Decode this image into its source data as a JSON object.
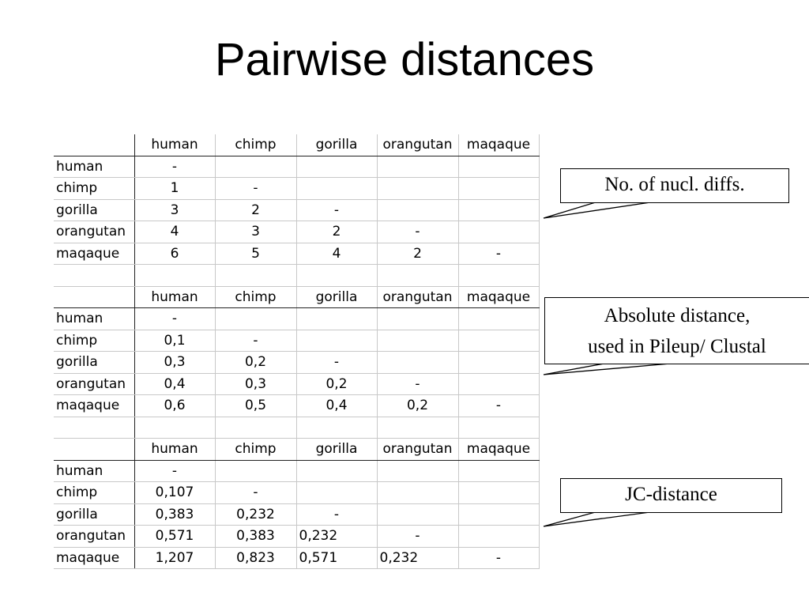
{
  "slide": {
    "title": "Pairwise distances"
  },
  "tables": [
    {
      "columns": [
        "human",
        "chimp",
        "gorilla",
        "orangutan",
        "maqaque"
      ],
      "rows": [
        {
          "label": "human",
          "cells": [
            "-",
            "",
            "",
            "",
            ""
          ]
        },
        {
          "label": "chimp",
          "cells": [
            "1",
            "-",
            "",
            "",
            ""
          ]
        },
        {
          "label": "gorilla",
          "cells": [
            "3",
            "2",
            "-",
            "",
            ""
          ]
        },
        {
          "label": "orangutan",
          "cells": [
            "4",
            "3",
            "2",
            "-",
            ""
          ]
        },
        {
          "label": "maqaque",
          "cells": [
            "6",
            "5",
            "4",
            "2",
            "-"
          ]
        }
      ]
    },
    {
      "columns": [
        "human",
        "chimp",
        "gorilla",
        "orangutan",
        "maqaque"
      ],
      "rows": [
        {
          "label": "human",
          "cells": [
            "-",
            "",
            "",
            "",
            ""
          ]
        },
        {
          "label": "chimp",
          "cells": [
            "0,1",
            "-",
            "",
            "",
            ""
          ]
        },
        {
          "label": "gorilla",
          "cells": [
            "0,3",
            "0,2",
            "-",
            "",
            ""
          ]
        },
        {
          "label": "orangutan",
          "cells": [
            "0,4",
            "0,3",
            "0,2",
            "-",
            ""
          ]
        },
        {
          "label": "maqaque",
          "cells": [
            "0,6",
            "0,5",
            "0,4",
            "0,2",
            "-"
          ]
        }
      ]
    },
    {
      "columns": [
        "human",
        "chimp",
        "gorilla",
        "orangutan",
        "maqaque"
      ],
      "rows": [
        {
          "label": "human",
          "cells": [
            "-",
            "",
            "",
            "",
            ""
          ]
        },
        {
          "label": "chimp",
          "cells": [
            "0,107",
            "-",
            "",
            "",
            ""
          ]
        },
        {
          "label": "gorilla",
          "cells": [
            "0,383",
            "0,232",
            "-",
            "",
            ""
          ]
        },
        {
          "label": "orangutan",
          "cells": [
            "0,571",
            "0,383",
            "0,232",
            "-",
            ""
          ]
        },
        {
          "label": "maqaque",
          "cells": [
            "1,207",
            "0,823",
            "0,571",
            "0,232",
            "-"
          ]
        }
      ]
    }
  ],
  "callouts": {
    "nucl_diffs": "No. of nucl. diffs.",
    "absolute_line1": "Absolute distance,",
    "absolute_line2": "used in Pileup/ Clustal",
    "jc_distance": "JC-distance"
  }
}
